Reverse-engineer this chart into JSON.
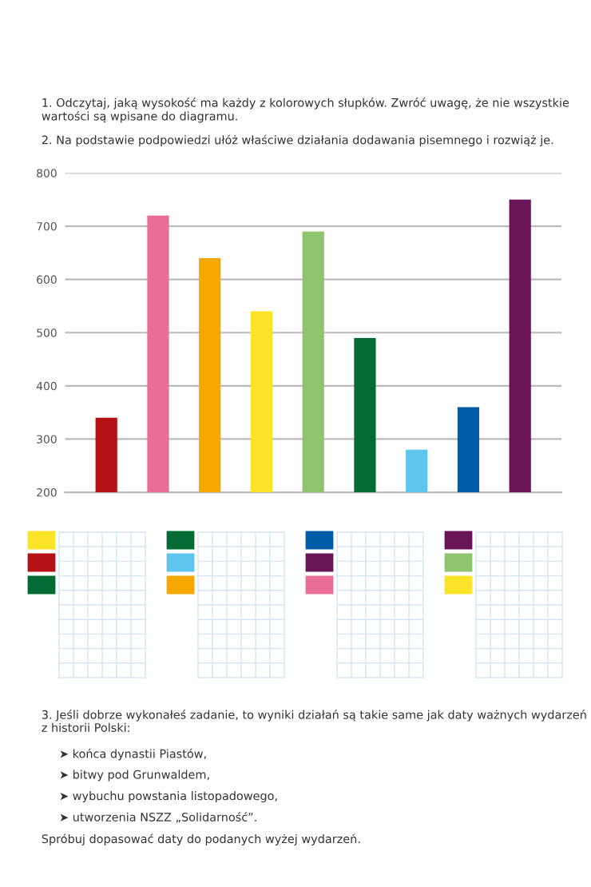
{
  "chart_data": {
    "type": "bar",
    "categories": [
      null,
      null,
      null,
      null,
      null,
      null,
      null,
      null,
      null
    ],
    "values": [
      340,
      720,
      640,
      540,
      690,
      490,
      280,
      360,
      750
    ],
    "colors": [
      "#b51218",
      "#ea6f96",
      "#f7a800",
      "#fbe32a",
      "#8ec46d",
      "#036b35",
      "#5ec5ee",
      "#005ca6",
      "#6a1458"
    ],
    "ylim": [
      200,
      800
    ],
    "yticks": [
      200,
      300,
      400,
      500,
      600,
      700,
      800
    ],
    "grid": "y",
    "annotations": [
      "1. Odczytaj, jaką wysokość ma każdy z kolorowych słupków. Zwróć uwagę, że nie wszystkie wartości są wpisane do diagramu.",
      "2. Na podstawie podpowiedzi ułóż właściwe działania dodawania pisemnego i rozwiąż je.",
      "3. Jeśli dobrze wykonałeś zadanie, to wyniki działań są takie same jak daty ważnych wydarzeń z historii Polski:",
      "➤ końca dynastii Piastów,",
      "➤ bitwy pod Grunwaldem,",
      "➤ wybuchu powstania listopadowego,",
      "➤ utworzenia NSZZ „Solidarność”.",
      "Spróbuj dopasować daty do podanych wyżej wydarzeń."
    ]
  }
}
